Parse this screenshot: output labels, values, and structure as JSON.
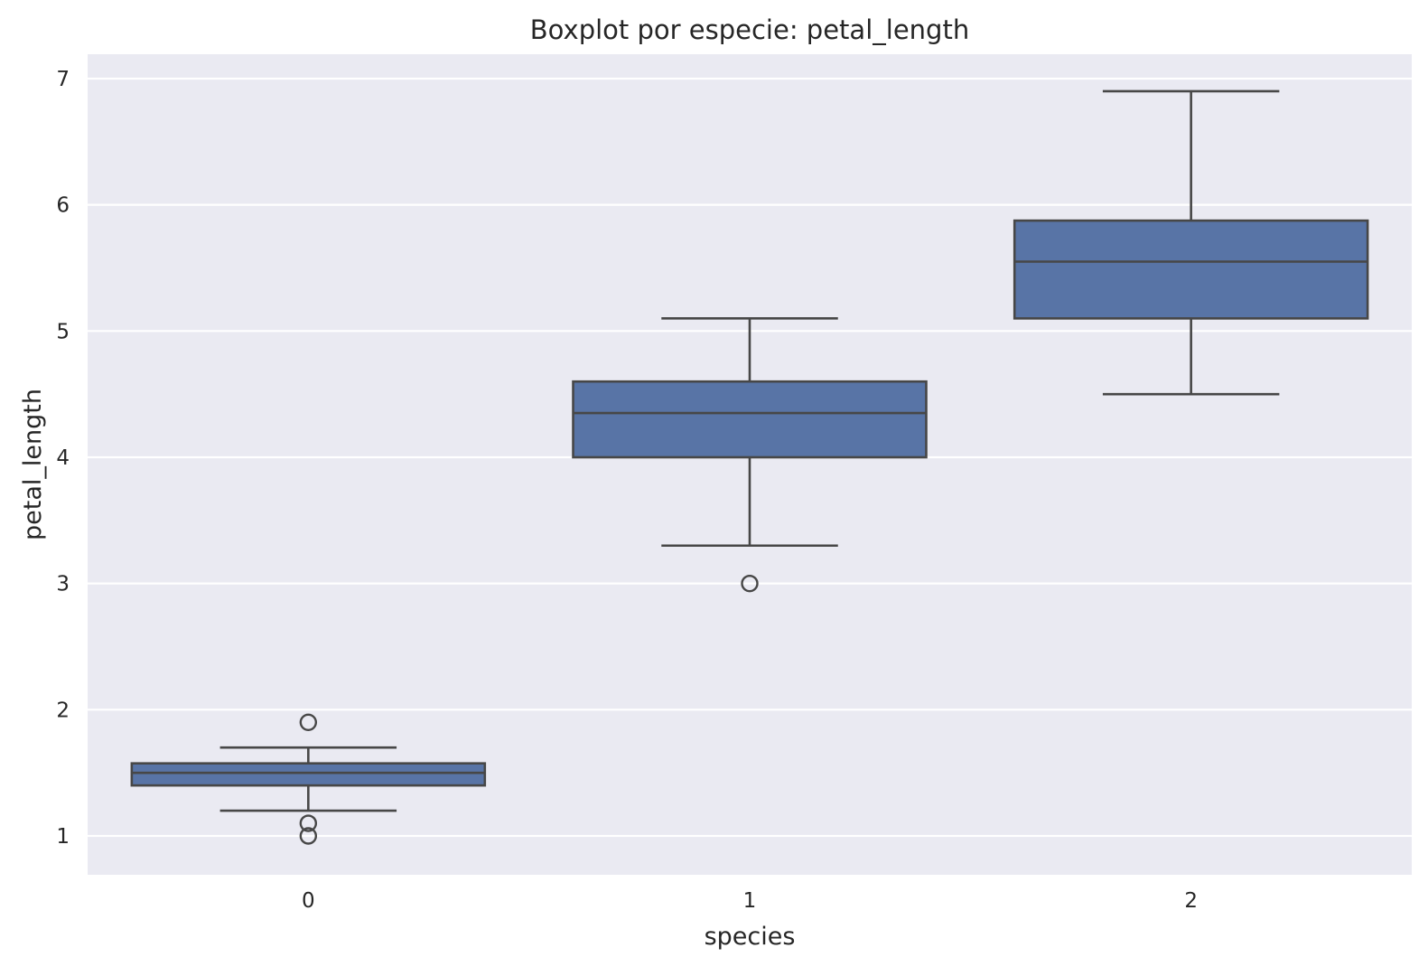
{
  "chart_data": {
    "type": "box",
    "title": "Boxplot por especie: petal_length",
    "xlabel": "species",
    "ylabel": "petal_length",
    "ylim": [
      0.7,
      7.2
    ],
    "yticks": [
      1,
      2,
      3,
      4,
      5,
      6,
      7
    ],
    "grid": true,
    "box_color": "#5874a6",
    "line_color": "#474747",
    "background_color": "#eaeaf2",
    "categories": [
      "0",
      "1",
      "2"
    ],
    "boxes": [
      {
        "category": "0",
        "whisker_low": 1.2,
        "q1": 1.4,
        "median": 1.5,
        "q3": 1.575,
        "whisker_high": 1.7,
        "outliers": [
          1.9,
          1.1,
          1.0
        ]
      },
      {
        "category": "1",
        "whisker_low": 3.3,
        "q1": 4.0,
        "median": 4.35,
        "q3": 4.6,
        "whisker_high": 5.1,
        "outliers": [
          3.0
        ]
      },
      {
        "category": "2",
        "whisker_low": 4.5,
        "q1": 5.1,
        "median": 5.55,
        "q3": 5.875,
        "whisker_high": 6.9,
        "outliers": []
      }
    ]
  }
}
